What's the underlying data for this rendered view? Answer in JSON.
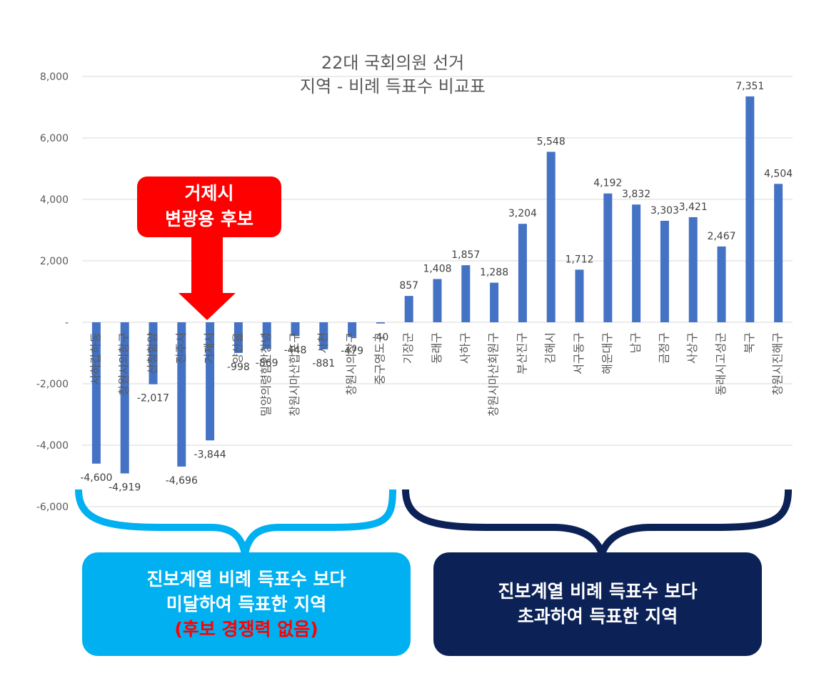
{
  "chart_data": {
    "type": "bar",
    "title": "22대  국회의원 선거",
    "subtitle": "지역 - 비례 득표수 비교표",
    "ylim": [
      -6000,
      8000
    ],
    "yticks": [
      8000,
      6000,
      4000,
      2000,
      0,
      -2000,
      -4000,
      -6000
    ],
    "ytick_labels": [
      "8,000",
      "6,000",
      "4,000",
      "2,000",
      "-",
      "-2,000",
      "-4,000",
      "-6,000"
    ],
    "grid": true,
    "bar_color": "#4472c4",
    "categories": [
      "사하갑하동",
      "창원시의창구",
      "산청함양",
      "진주시",
      "거제시",
      "양산을",
      "밀양의령함안창녕",
      "창원시마산합포구",
      "사천",
      "창원시의창구",
      "중구영도구",
      "기장군",
      "동래구",
      "사하구",
      "창원시마산회원구",
      "부산진구",
      "김해시",
      "서구동구",
      "해운대구",
      "남구",
      "금정구",
      "사상구",
      "동래시고성군",
      "북구",
      "창원시진해구"
    ],
    "values": [
      -4600,
      -4919,
      -2017,
      -4696,
      -3844,
      -998,
      -869,
      -448,
      -881,
      -479,
      -40,
      857,
      1408,
      1857,
      1288,
      3204,
      5548,
      1712,
      4192,
      3832,
      3303,
      3421,
      2467,
      7351,
      4504
    ],
    "value_labels": [
      "-4,600",
      "-4,919",
      "-2,017",
      "-4,696",
      "-3,844",
      "-998",
      "-869",
      "-448",
      "-881",
      "-479",
      "-40",
      "857",
      "1,408",
      "1,857",
      "1,288",
      "3,204",
      "5,548",
      "1,712",
      "4,192",
      "3,832",
      "3,303",
      "3,421",
      "2,467",
      "7,351",
      "4,504"
    ]
  },
  "callout": {
    "line1": "거제시",
    "line2": "변광용 후보",
    "color": "#ff0000"
  },
  "brace_left": {
    "color": "#00b0f0"
  },
  "brace_right": {
    "color": "#0c2257"
  },
  "left_box": {
    "line1": "진보계열 비례 득표수 보다",
    "line2": "미달하여 득표한 지역",
    "line3": "(후보 경쟁력 없음)",
    "color": "#00b0f0"
  },
  "right_box": {
    "line1": "진보계열 비례 득표수 보다",
    "line2": "초과하여 득표한 지역",
    "color": "#0c2257"
  }
}
